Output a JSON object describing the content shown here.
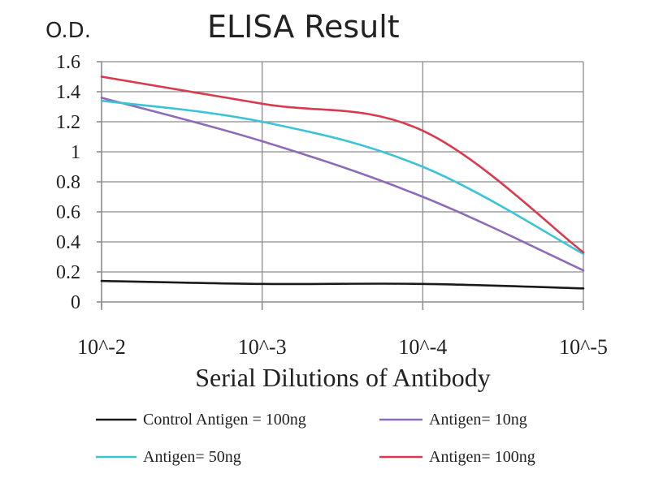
{
  "chart_data": {
    "type": "line",
    "title": "ELISA Result",
    "ylabel": "O.D.",
    "xlabel": "Serial Dilutions of Antibody",
    "categories": [
      "10^-2",
      "10^-3",
      "10^-4",
      "10^-5"
    ],
    "ylim": [
      0,
      1.6
    ],
    "yticks": [
      0,
      0.2,
      0.4,
      0.6,
      0.8,
      1,
      1.2,
      1.4,
      1.6
    ],
    "ytick_labels": [
      "0",
      "0.2",
      "0.4",
      "0.6",
      "0.8",
      "1",
      "1.2",
      "1.4",
      "1.6"
    ],
    "grid": true,
    "legend_position": "bottom",
    "series": [
      {
        "name": "Control Antigen = 100ng",
        "color": "#1a1a1a",
        "values": [
          0.14,
          0.12,
          0.12,
          0.09
        ]
      },
      {
        "name": "Antigen= 10ng",
        "color": "#8e6bb8",
        "values": [
          1.36,
          1.07,
          0.7,
          0.21
        ]
      },
      {
        "name": "Antigen= 50ng",
        "color": "#3cc4d6",
        "values": [
          1.34,
          1.2,
          0.9,
          0.32
        ]
      },
      {
        "name": "Antigen= 100ng",
        "color": "#d83a4e",
        "values": [
          1.5,
          1.32,
          1.14,
          0.33
        ]
      }
    ]
  }
}
